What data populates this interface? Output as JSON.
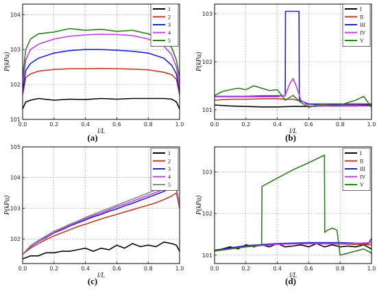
{
  "colors": {
    "black": "#000000",
    "red": "#c0392b",
    "blue": "#1f1fd0",
    "violet": "#c040e0",
    "green": "#2e7d1e"
  },
  "chart_data": [
    {
      "type": "line",
      "panel_label": "(a)",
      "xlabel": "l/L",
      "ylabel": "P(kPa)",
      "xlim": [
        0,
        1
      ],
      "ylim": [
        101,
        104.3
      ],
      "xticks": [
        "0.0",
        "0.2",
        "0.4",
        "0.6",
        "0.8",
        "1.0"
      ],
      "yticks": [
        "101",
        "102",
        "103",
        "104"
      ],
      "ytick_values": [
        101,
        102,
        103,
        104
      ],
      "grid": true,
      "legend": "top-right",
      "x": [
        0,
        0.02,
        0.05,
        0.1,
        0.2,
        0.3,
        0.4,
        0.5,
        0.6,
        0.7,
        0.8,
        0.9,
        0.95,
        0.98,
        1.0
      ],
      "series": [
        {
          "name": "1",
          "color": "#000000",
          "values": [
            101.3,
            101.5,
            101.55,
            101.6,
            101.55,
            101.58,
            101.57,
            101.6,
            101.58,
            101.6,
            101.6,
            101.6,
            101.58,
            101.5,
            101.3
          ]
        },
        {
          "name": "2",
          "color": "#c0392b",
          "values": [
            101.7,
            102.2,
            102.3,
            102.38,
            102.43,
            102.45,
            102.45,
            102.46,
            102.45,
            102.44,
            102.42,
            102.35,
            102.28,
            102.15,
            101.7
          ]
        },
        {
          "name": "3",
          "color": "#1f1fd0",
          "values": [
            101.8,
            102.4,
            102.6,
            102.75,
            102.9,
            102.97,
            103.0,
            103.0,
            102.98,
            102.95,
            102.9,
            102.75,
            102.55,
            102.3,
            101.8
          ]
        },
        {
          "name": "4",
          "color": "#c040e0",
          "values": [
            102.0,
            102.7,
            103.0,
            103.15,
            103.3,
            103.38,
            103.42,
            103.44,
            103.43,
            103.4,
            103.3,
            103.1,
            102.85,
            102.5,
            102.0
          ]
        },
        {
          "name": "5",
          "color": "#2e7d1e",
          "values": [
            102.2,
            103.0,
            103.3,
            103.45,
            103.5,
            103.6,
            103.55,
            103.58,
            103.52,
            103.55,
            103.45,
            103.3,
            103.05,
            102.7,
            102.2
          ]
        }
      ]
    },
    {
      "type": "line",
      "panel_label": "(b)",
      "xlabel": "l/L",
      "ylabel": "P(kPa)",
      "xlim": [
        0,
        1
      ],
      "ylim": [
        100.8,
        103.2
      ],
      "xticks": [
        "0.0",
        "0.2",
        "0.4",
        "0.6",
        "0.8",
        "1.0"
      ],
      "yticks": [
        "101",
        "102",
        "103"
      ],
      "ytick_values": [
        101,
        102,
        103
      ],
      "grid": true,
      "legend": "top-right",
      "series": [
        {
          "name": "I",
          "color": "#000000",
          "x": [
            0,
            0.1,
            0.2,
            0.3,
            0.4,
            0.5,
            0.6,
            0.7,
            0.8,
            0.9,
            1.0
          ],
          "values": [
            101.1,
            101.08,
            101.07,
            101.06,
            101.06,
            101.07,
            101.07,
            101.08,
            101.08,
            101.08,
            101.1
          ]
        },
        {
          "name": "II",
          "color": "#c0392b",
          "x": [
            0,
            0.1,
            0.2,
            0.3,
            0.4,
            0.45,
            0.5,
            0.55,
            0.6,
            0.7,
            0.8,
            0.9,
            1.0
          ],
          "values": [
            101.2,
            101.22,
            101.22,
            101.23,
            101.23,
            101.22,
            101.22,
            101.18,
            101.12,
            101.1,
            101.1,
            101.1,
            101.12
          ]
        },
        {
          "name": "III",
          "color": "#1f1fd0",
          "x": [
            0,
            0.1,
            0.2,
            0.3,
            0.4,
            0.45,
            0.452,
            0.538,
            0.54,
            0.6,
            0.7,
            0.8,
            0.9,
            1.0
          ],
          "values": [
            101.28,
            101.28,
            101.28,
            101.29,
            101.29,
            101.29,
            103.05,
            103.05,
            101.2,
            101.12,
            101.12,
            101.12,
            101.12,
            101.12
          ]
        },
        {
          "name": "IV",
          "color": "#c040e0",
          "x": [
            0,
            0.2,
            0.4,
            0.45,
            0.48,
            0.5,
            0.52,
            0.55,
            0.6,
            0.7,
            0.8,
            0.9,
            1.0
          ],
          "values": [
            101.27,
            101.27,
            101.27,
            101.3,
            101.55,
            101.65,
            101.5,
            101.2,
            101.08,
            101.08,
            101.08,
            101.08,
            101.08
          ]
        },
        {
          "name": "V",
          "color": "#2e7d1e",
          "x": [
            0,
            0.05,
            0.1,
            0.15,
            0.2,
            0.25,
            0.3,
            0.35,
            0.4,
            0.45,
            0.5,
            0.55,
            0.6,
            0.65,
            0.7,
            0.75,
            0.8,
            0.85,
            0.9,
            0.95,
            1.0
          ],
          "values": [
            101.3,
            101.38,
            101.42,
            101.45,
            101.42,
            101.5,
            101.45,
            101.4,
            101.42,
            101.2,
            101.3,
            101.15,
            101.05,
            101.1,
            101.12,
            101.08,
            101.1,
            101.15,
            101.2,
            101.28,
            101.05
          ]
        }
      ]
    },
    {
      "type": "line",
      "panel_label": "(c)",
      "xlabel": "l/L",
      "ylabel": "P(kPa)",
      "xlim": [
        0,
        1
      ],
      "ylim": [
        101.2,
        105
      ],
      "xticks": [
        "0.0",
        "0.2",
        "0.4",
        "0.6",
        "0.8",
        "1.0"
      ],
      "yticks": [
        "102",
        "103",
        "104",
        "105"
      ],
      "ytick_values": [
        102,
        103,
        104,
        105
      ],
      "grid": true,
      "legend": "top-right",
      "x": [
        0,
        0.05,
        0.1,
        0.15,
        0.2,
        0.25,
        0.3,
        0.35,
        0.4,
        0.45,
        0.5,
        0.55,
        0.6,
        0.65,
        0.7,
        0.75,
        0.8,
        0.85,
        0.9,
        0.95,
        0.98,
        1.0
      ],
      "series": [
        {
          "name": "1",
          "color": "#000000",
          "values": [
            101.35,
            101.45,
            101.45,
            101.55,
            101.55,
            101.6,
            101.6,
            101.65,
            101.7,
            101.6,
            101.7,
            101.65,
            101.8,
            101.7,
            101.85,
            101.75,
            101.8,
            101.75,
            101.9,
            101.85,
            101.8,
            101.6
          ]
        },
        {
          "name": "2",
          "color": "#c0392b",
          "values": [
            101.5,
            101.7,
            101.85,
            101.98,
            102.1,
            102.2,
            102.3,
            102.4,
            102.48,
            102.57,
            102.65,
            102.73,
            102.8,
            102.88,
            102.95,
            103.03,
            103.1,
            103.18,
            103.28,
            103.4,
            103.5,
            103.0
          ]
        },
        {
          "name": "3",
          "color": "#1f1fd0",
          "values": [
            101.5,
            101.75,
            101.92,
            102.05,
            102.2,
            102.3,
            102.42,
            102.52,
            102.62,
            102.72,
            102.8,
            102.9,
            102.98,
            103.08,
            103.16,
            103.26,
            103.35,
            103.45,
            103.55,
            103.7,
            103.65,
            103.1
          ]
        },
        {
          "name": "4",
          "color": "#c040e0",
          "values": [
            101.5,
            101.76,
            101.93,
            102.07,
            102.22,
            102.33,
            102.45,
            102.55,
            102.66,
            102.76,
            102.85,
            102.95,
            103.05,
            103.14,
            103.23,
            103.33,
            103.42,
            103.52,
            103.62,
            103.72,
            103.6,
            103.1
          ]
        },
        {
          "name": "5",
          "color": "#888888",
          "values": [
            101.5,
            101.78,
            101.95,
            102.1,
            102.25,
            102.36,
            102.48,
            102.58,
            102.7,
            102.8,
            102.9,
            103.0,
            103.1,
            103.2,
            103.3,
            103.4,
            103.5,
            103.6,
            103.7,
            103.75,
            103.65,
            103.15
          ]
        }
      ]
    },
    {
      "type": "line",
      "panel_label": "(d)",
      "xlabel": "l/L",
      "ylabel": "P(kPa)",
      "xlim": [
        0,
        1
      ],
      "ylim": [
        100.8,
        103.6
      ],
      "xticks": [
        "0.0",
        "0.2",
        "0.4",
        "0.6",
        "0.8",
        "1.0"
      ],
      "yticks": [
        "101",
        "102",
        "103"
      ],
      "ytick_values": [
        101,
        102,
        103
      ],
      "grid": true,
      "legend": "top-right",
      "series": [
        {
          "name": "I",
          "color": "#000000",
          "x": [
            0,
            0.05,
            0.1,
            0.15,
            0.2,
            0.25,
            0.3,
            0.35,
            0.4,
            0.45,
            0.5,
            0.55,
            0.6,
            0.65,
            0.7,
            0.75,
            0.8,
            0.85,
            0.9,
            0.95,
            1.0
          ],
          "values": [
            101.1,
            101.15,
            101.2,
            101.15,
            101.25,
            101.2,
            101.25,
            101.2,
            101.28,
            101.2,
            101.22,
            101.25,
            101.2,
            101.28,
            101.2,
            101.25,
            101.2,
            101.22,
            101.2,
            101.25,
            101.15
          ]
        },
        {
          "name": "II",
          "color": "#c0392b",
          "x": [
            0,
            0.2,
            0.4,
            0.6,
            0.8,
            1.0
          ],
          "values": [
            101.12,
            101.22,
            101.27,
            101.28,
            101.27,
            101.25
          ]
        },
        {
          "name": "III",
          "color": "#1f1fd0",
          "x": [
            0,
            0.2,
            0.4,
            0.6,
            0.8,
            0.98,
            1.0
          ],
          "values": [
            101.12,
            101.23,
            101.28,
            101.3,
            101.3,
            101.28,
            101.4
          ]
        },
        {
          "name": "IV",
          "color": "#c040e0",
          "x": [
            0,
            0.2,
            0.4,
            0.6,
            0.8,
            1.0
          ],
          "values": [
            101.1,
            101.2,
            101.26,
            101.28,
            101.27,
            101.3
          ]
        },
        {
          "name": "V",
          "color": "#2e7d1e",
          "x": [
            0,
            0.1,
            0.2,
            0.3,
            0.302,
            0.4,
            0.5,
            0.6,
            0.7,
            0.702,
            0.72,
            0.75,
            0.78,
            0.8,
            0.85,
            0.9,
            0.95,
            1.0
          ],
          "values": [
            101.1,
            101.15,
            101.2,
            101.25,
            102.65,
            102.85,
            103.05,
            103.22,
            103.4,
            101.55,
            101.6,
            101.65,
            101.6,
            101.0,
            101.05,
            101.1,
            101.15,
            101.05
          ]
        }
      ]
    }
  ]
}
